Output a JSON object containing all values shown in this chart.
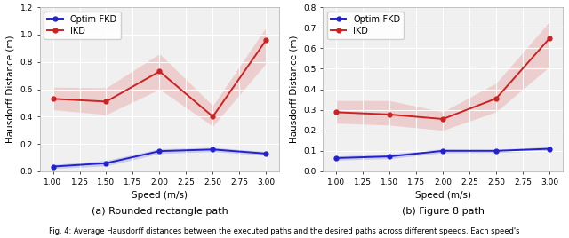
{
  "speeds": [
    1.0,
    1.5,
    2.0,
    2.5,
    3.0
  ],
  "xticks": [
    1.0,
    1.25,
    1.5,
    1.75,
    2.0,
    2.25,
    2.5,
    2.75,
    3.0
  ],
  "left": {
    "blue_mean": [
      0.035,
      0.06,
      0.148,
      0.16,
      0.13
    ],
    "blue_upper": [
      0.05,
      0.08,
      0.165,
      0.175,
      0.145
    ],
    "blue_lower": [
      0.02,
      0.04,
      0.13,
      0.145,
      0.115
    ],
    "red_mean": [
      0.53,
      0.51,
      0.73,
      0.4,
      0.96
    ],
    "red_upper": [
      0.615,
      0.61,
      0.86,
      0.48,
      1.055
    ],
    "red_lower": [
      0.45,
      0.415,
      0.6,
      0.33,
      0.79
    ],
    "ylim": [
      0,
      1.2
    ],
    "yticks": [
      0.0,
      0.2,
      0.4,
      0.6,
      0.8,
      1.0,
      1.2
    ],
    "subtitle": "(a) Rounded rectangle path"
  },
  "right": {
    "blue_mean": [
      0.065,
      0.073,
      0.1,
      0.1,
      0.11
    ],
    "blue_upper": [
      0.075,
      0.085,
      0.11,
      0.108,
      0.12
    ],
    "blue_lower": [
      0.055,
      0.062,
      0.09,
      0.092,
      0.1
    ],
    "red_mean": [
      0.288,
      0.277,
      0.255,
      0.355,
      0.648
    ],
    "red_upper": [
      0.345,
      0.345,
      0.29,
      0.43,
      0.73
    ],
    "red_lower": [
      0.235,
      0.225,
      0.2,
      0.29,
      0.51
    ],
    "ylim": [
      0,
      0.8
    ],
    "yticks": [
      0.0,
      0.1,
      0.2,
      0.3,
      0.4,
      0.5,
      0.6,
      0.7,
      0.8
    ],
    "subtitle": "(b) Figure 8 path"
  },
  "blue_color": "#2222cc",
  "red_color": "#cc2222",
  "blue_fill_color": "#8888dd",
  "red_fill_color": "#e89090",
  "xlabel": "Speed (m/s)",
  "ylabel": "Hausdorff Distance (m)",
  "legend_labels": [
    "Optim-FKD",
    "IKD"
  ],
  "marker": "o",
  "markersize": 3.5,
  "linewidth": 1.4,
  "fill_alpha": 0.35,
  "fig_caption": "Fig. 4: Average Hausdorff distances between the executed paths and the desired paths across different speeds. Each speed's",
  "axis_fontsize": 7.5,
  "legend_fontsize": 7,
  "tick_fontsize": 6.5,
  "subtitle_fontsize": 8,
  "caption_fontsize": 6,
  "bg_color": "#f0f0f0"
}
